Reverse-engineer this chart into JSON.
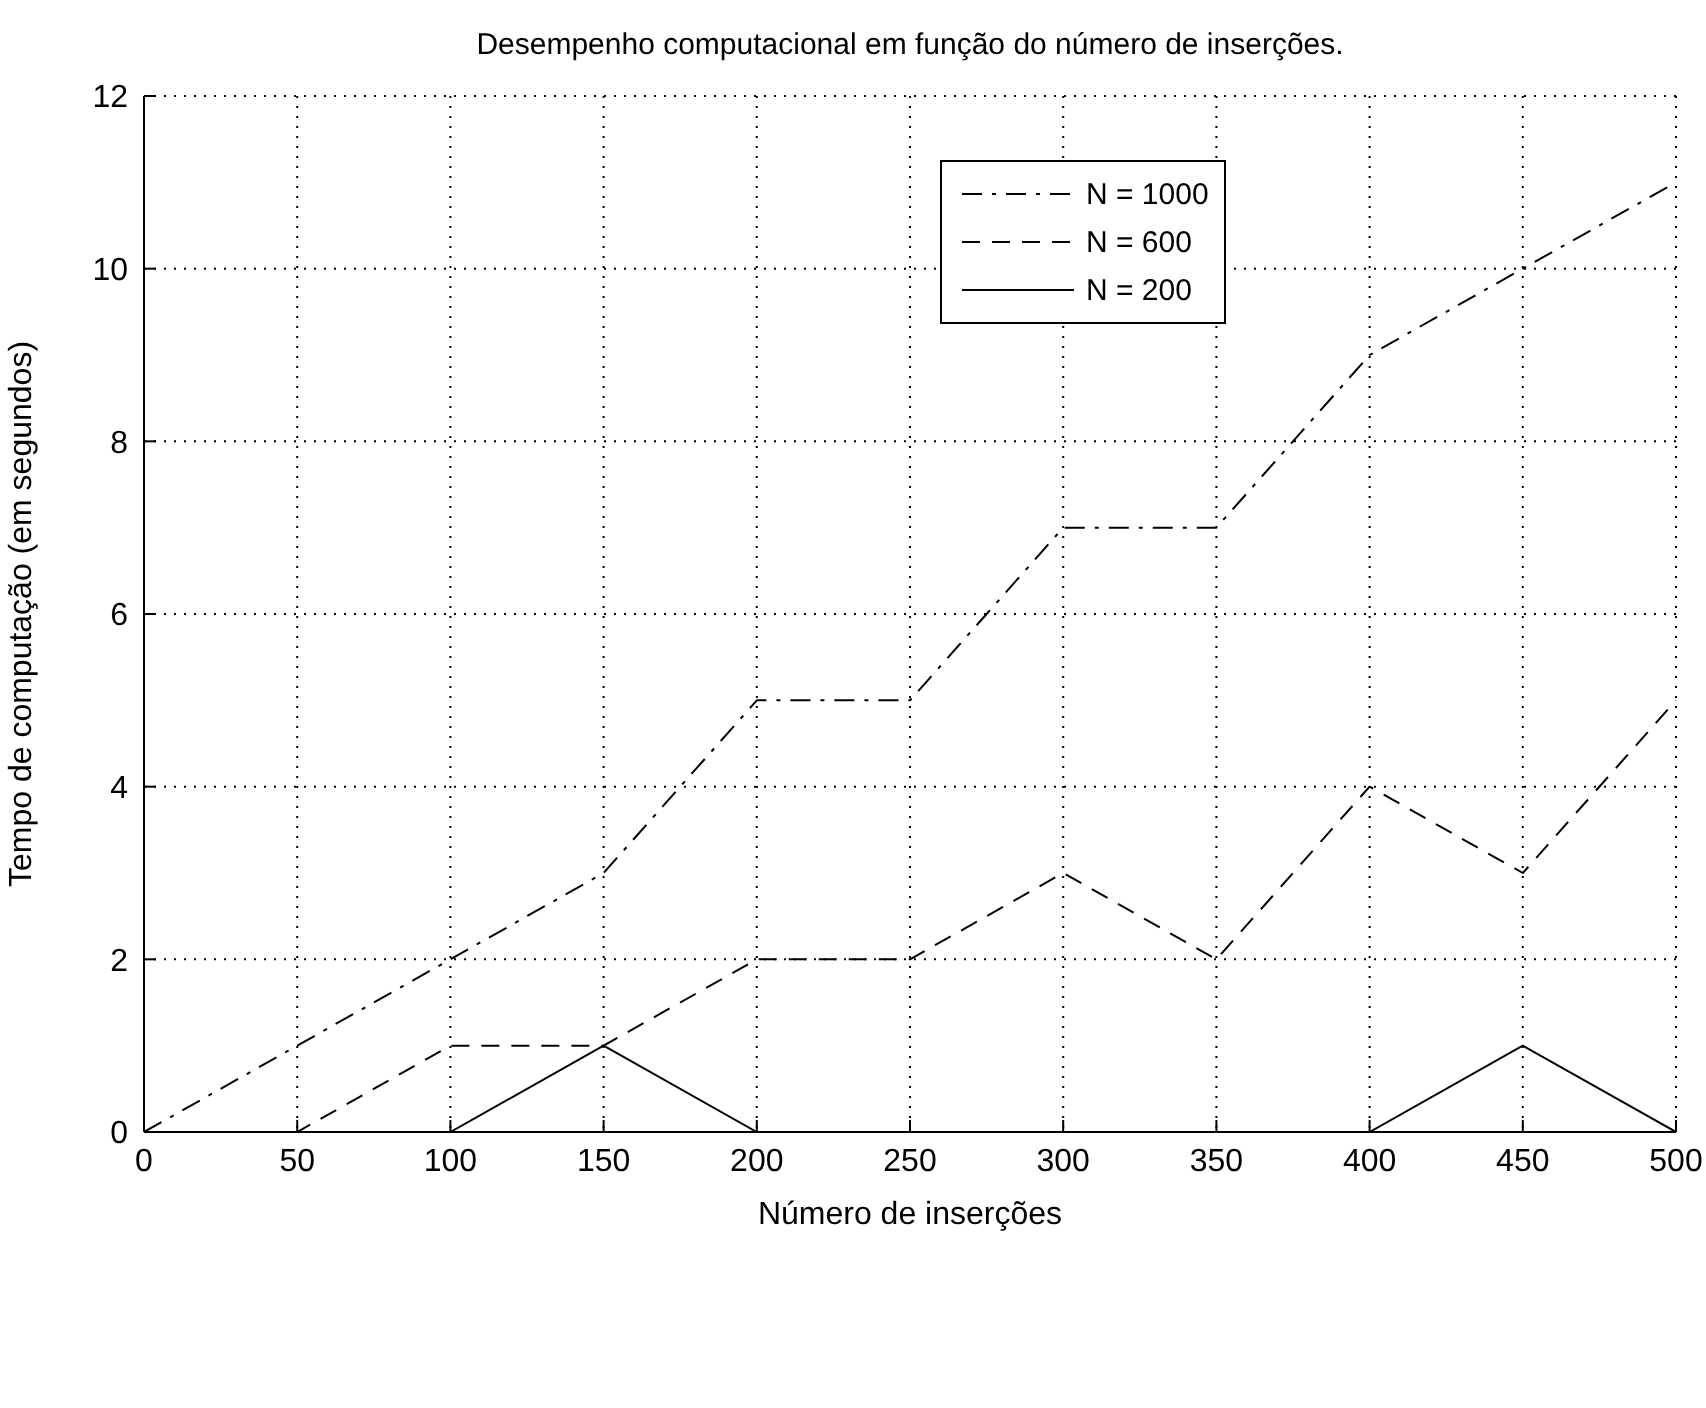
{
  "chart_data": {
    "type": "line",
    "title": "Desempenho computacional em função do número de inserções.",
    "xlabel": "Número de inserções",
    "ylabel": "Tempo de computação (em segundos)",
    "x": [
      0,
      50,
      100,
      150,
      200,
      250,
      300,
      350,
      400,
      450,
      500
    ],
    "series": [
      {
        "name": "N = 1000",
        "color": "#000000",
        "line_style": "dashdot",
        "values": [
          0,
          1,
          2,
          3,
          5,
          5,
          7,
          7,
          9,
          10,
          11
        ]
      },
      {
        "name": "N = 600",
        "color": "#000000",
        "line_style": "dashed",
        "values": [
          0,
          0,
          1,
          1,
          2,
          2,
          3,
          2,
          4,
          3,
          5
        ]
      },
      {
        "name": "N = 200",
        "color": "#000000",
        "line_style": "solid",
        "values": [
          0,
          0,
          0,
          1,
          0,
          0,
          0,
          0,
          0,
          1,
          0
        ]
      }
    ],
    "xlim": [
      0,
      500
    ],
    "xticks": [
      0,
      50,
      100,
      150,
      200,
      250,
      300,
      350,
      400,
      450,
      500
    ],
    "ylim": [
      0,
      12
    ],
    "yticks": [
      0,
      2,
      4,
      6,
      8,
      10,
      12
    ],
    "grid": true,
    "legend": "top right",
    "marker": "none"
  }
}
